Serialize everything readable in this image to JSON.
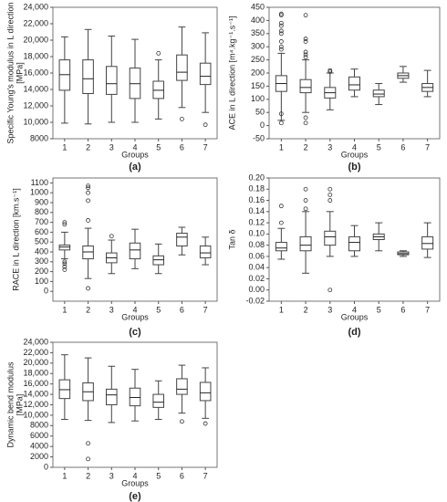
{
  "chart_data": [
    {
      "type": "box",
      "ylabel": "Specific Young's modulus in L direction",
      "ylabel_unit": "[MPa]",
      "xlabel": "Groups",
      "caption": "(a)",
      "categories": [
        "1",
        "2",
        "3",
        "4",
        "5",
        "6",
        "7"
      ],
      "ylim": [
        8000,
        24000
      ],
      "yticks": [
        8000,
        {
          "value": 10000,
          "label": "10,000"
        },
        {
          "value": 12000,
          "label": "12,000"
        },
        {
          "value": 14000,
          "label": "14,000"
        },
        {
          "value": 16000,
          "label": "16,000"
        },
        {
          "value": 18000,
          "label": "18,000"
        },
        {
          "value": 20000,
          "label": "20,000"
        },
        {
          "value": 22000,
          "label": "22,000"
        },
        {
          "value": 24000,
          "label": "24,000"
        }
      ],
      "boxes": [
        {
          "whislo": 9900,
          "q1": 13900,
          "med": 15800,
          "q3": 17600,
          "whishi": 20400,
          "fliers": []
        },
        {
          "whislo": 9800,
          "q1": 13500,
          "med": 15300,
          "q3": 17600,
          "whishi": 21300,
          "fliers": []
        },
        {
          "whislo": 10000,
          "q1": 13400,
          "med": 14700,
          "q3": 16800,
          "whishi": 20500,
          "fliers": []
        },
        {
          "whislo": 10000,
          "q1": 12900,
          "med": 14700,
          "q3": 16600,
          "whishi": 20100,
          "fliers": []
        },
        {
          "whislo": 10400,
          "q1": 12900,
          "med": 13900,
          "q3": 15000,
          "whishi": 17600,
          "fliers": [
            18400
          ]
        },
        {
          "whislo": 11800,
          "q1": 15100,
          "med": 16100,
          "q3": 18200,
          "whishi": 21600,
          "fliers": [
            10400
          ]
        },
        {
          "whislo": 11200,
          "q1": 14600,
          "med": 15600,
          "q3": 17200,
          "whishi": 20900,
          "fliers": [
            9700
          ]
        }
      ]
    },
    {
      "type": "box",
      "ylabel": "ACE in L direction [m⁴.kg⁻¹.s⁻¹]",
      "xlabel": "Groups",
      "caption": "(b)",
      "categories": [
        "1",
        "2",
        "3",
        "4",
        "5",
        "6",
        "7"
      ],
      "ylim": [
        -50,
        450
      ],
      "yticks": [
        -50,
        0,
        50,
        100,
        150,
        200,
        250,
        300,
        350,
        400,
        450
      ],
      "boxes": [
        {
          "whislo": 20,
          "q1": 130,
          "med": 160,
          "q3": 190,
          "whishi": 275,
          "fliers": [
            10,
            45,
            290,
            300,
            320,
            350,
            360,
            380,
            390,
            420,
            425
          ]
        },
        {
          "whislo": 50,
          "q1": 125,
          "med": 145,
          "q3": 175,
          "whishi": 250,
          "fliers": [
            10,
            30,
            260,
            270,
            280,
            320,
            330,
            420
          ]
        },
        {
          "whislo": 60,
          "q1": 105,
          "med": 125,
          "q3": 145,
          "whishi": 200,
          "fliers": [
            205,
            210
          ]
        },
        {
          "whislo": 110,
          "q1": 135,
          "med": 155,
          "q3": 185,
          "whishi": 215,
          "fliers": []
        },
        {
          "whislo": 80,
          "q1": 110,
          "med": 120,
          "q3": 135,
          "whishi": 160,
          "fliers": []
        },
        {
          "whislo": 165,
          "q1": 180,
          "med": 190,
          "q3": 200,
          "whishi": 225,
          "fliers": []
        },
        {
          "whislo": 110,
          "q1": 130,
          "med": 145,
          "q3": 160,
          "whishi": 210,
          "fliers": []
        }
      ]
    },
    {
      "type": "box",
      "ylabel": "RACE in L direction [km.s⁻¹]",
      "xlabel": "Groups",
      "caption": "(c)",
      "categories": [
        "1",
        "2",
        "3",
        "4",
        "5",
        "6",
        "7"
      ],
      "ylim": [
        -100,
        1150
      ],
      "yticks": [
        0,
        100,
        200,
        300,
        400,
        500,
        600,
        700,
        800,
        900,
        1000,
        1100
      ],
      "boxes": [
        {
          "whislo": 330,
          "q1": 420,
          "med": 450,
          "q3": 470,
          "whishi": 600,
          "fliers": [
            220,
            250,
            280,
            300,
            680,
            700
          ]
        },
        {
          "whislo": 130,
          "q1": 330,
          "med": 400,
          "q3": 460,
          "whishi": 640,
          "fliers": [
            30,
            720,
            920,
            1000,
            1050,
            1070
          ]
        },
        {
          "whislo": 180,
          "q1": 290,
          "med": 340,
          "q3": 390,
          "whishi": 520,
          "fliers": [
            560
          ]
        },
        {
          "whislo": 230,
          "q1": 330,
          "med": 420,
          "q3": 490,
          "whishi": 630,
          "fliers": []
        },
        {
          "whislo": 180,
          "q1": 270,
          "med": 320,
          "q3": 360,
          "whishi": 480,
          "fliers": []
        },
        {
          "whislo": 370,
          "q1": 460,
          "med": 550,
          "q3": 590,
          "whishi": 650,
          "fliers": []
        },
        {
          "whislo": 270,
          "q1": 340,
          "med": 390,
          "q3": 460,
          "whishi": 550,
          "fliers": []
        }
      ]
    },
    {
      "type": "box",
      "ylabel": "Tan δ",
      "xlabel": "Groups",
      "caption": "(d)",
      "categories": [
        "1",
        "2",
        "3",
        "4",
        "5",
        "6",
        "7"
      ],
      "ylim": [
        -0.02,
        0.2
      ],
      "yticks": [
        -0.02,
        {
          "value": 0,
          "label": "0.00"
        },
        0.02,
        0.04,
        0.06,
        0.08,
        {
          "value": 0.1,
          "label": "0.10"
        },
        0.12,
        0.14,
        0.16,
        0.18,
        {
          "value": 0.2,
          "label": "0.20"
        }
      ],
      "boxes": [
        {
          "whislo": 0.055,
          "q1": 0.07,
          "med": 0.075,
          "q3": 0.085,
          "whishi": 0.11,
          "fliers": [
            0.12,
            0.15
          ]
        },
        {
          "whislo": 0.03,
          "q1": 0.07,
          "med": 0.08,
          "q3": 0.095,
          "whishi": 0.14,
          "fliers": [
            0.145,
            0.16,
            0.18
          ]
        },
        {
          "whislo": 0.06,
          "q1": 0.08,
          "med": 0.095,
          "q3": 0.105,
          "whishi": 0.14,
          "fliers": [
            0,
            0.16,
            0.17,
            0.18
          ]
        },
        {
          "whislo": 0.06,
          "q1": 0.07,
          "med": 0.085,
          "q3": 0.095,
          "whishi": 0.115,
          "fliers": []
        },
        {
          "whislo": 0.07,
          "q1": 0.09,
          "med": 0.095,
          "q3": 0.1,
          "whishi": 0.12,
          "fliers": []
        },
        {
          "whislo": 0.06,
          "q1": 0.063,
          "med": 0.065,
          "q3": 0.068,
          "whishi": 0.07,
          "fliers": []
        },
        {
          "whislo": 0.058,
          "q1": 0.073,
          "med": 0.083,
          "q3": 0.095,
          "whishi": 0.12,
          "fliers": []
        }
      ]
    },
    {
      "type": "box",
      "ylabel": "Dynamic bend modulus",
      "ylabel_unit": "[MPa]",
      "xlabel": "Groups",
      "caption": "(e)",
      "categories": [
        "1",
        "2",
        "3",
        "4",
        "5",
        "6",
        "7"
      ],
      "ylim": [
        0,
        24000
      ],
      "yticks": [
        0,
        2000,
        4000,
        6000,
        8000,
        {
          "value": 10000,
          "label": "10,000"
        },
        {
          "value": 12000,
          "label": "12,000"
        },
        {
          "value": 14000,
          "label": "14,000"
        },
        {
          "value": 16000,
          "label": "16,000"
        },
        {
          "value": 18000,
          "label": "18,000"
        },
        {
          "value": 20000,
          "label": "20,000"
        },
        {
          "value": 22000,
          "label": "22,000"
        },
        {
          "value": 24000,
          "label": "24,000"
        }
      ],
      "boxes": [
        {
          "whislo": 9200,
          "q1": 13200,
          "med": 14900,
          "q3": 16800,
          "whishi": 21600,
          "fliers": []
        },
        {
          "whislo": 9000,
          "q1": 12800,
          "med": 14500,
          "q3": 16200,
          "whishi": 21000,
          "fliers": [
            4600,
            1600
          ]
        },
        {
          "whislo": 8600,
          "q1": 12000,
          "med": 13900,
          "q3": 15000,
          "whishi": 19400,
          "fliers": []
        },
        {
          "whislo": 8900,
          "q1": 11800,
          "med": 13400,
          "q3": 15200,
          "whishi": 18800,
          "fliers": []
        },
        {
          "whislo": 9200,
          "q1": 11500,
          "med": 12500,
          "q3": 14000,
          "whishi": 16600,
          "fliers": []
        },
        {
          "whislo": 10400,
          "q1": 14000,
          "med": 15000,
          "q3": 17000,
          "whishi": 19600,
          "fliers": [
            8800
          ]
        },
        {
          "whislo": 9400,
          "q1": 12800,
          "med": 14300,
          "q3": 16300,
          "whishi": 19100,
          "fliers": [
            8400
          ]
        }
      ]
    }
  ]
}
